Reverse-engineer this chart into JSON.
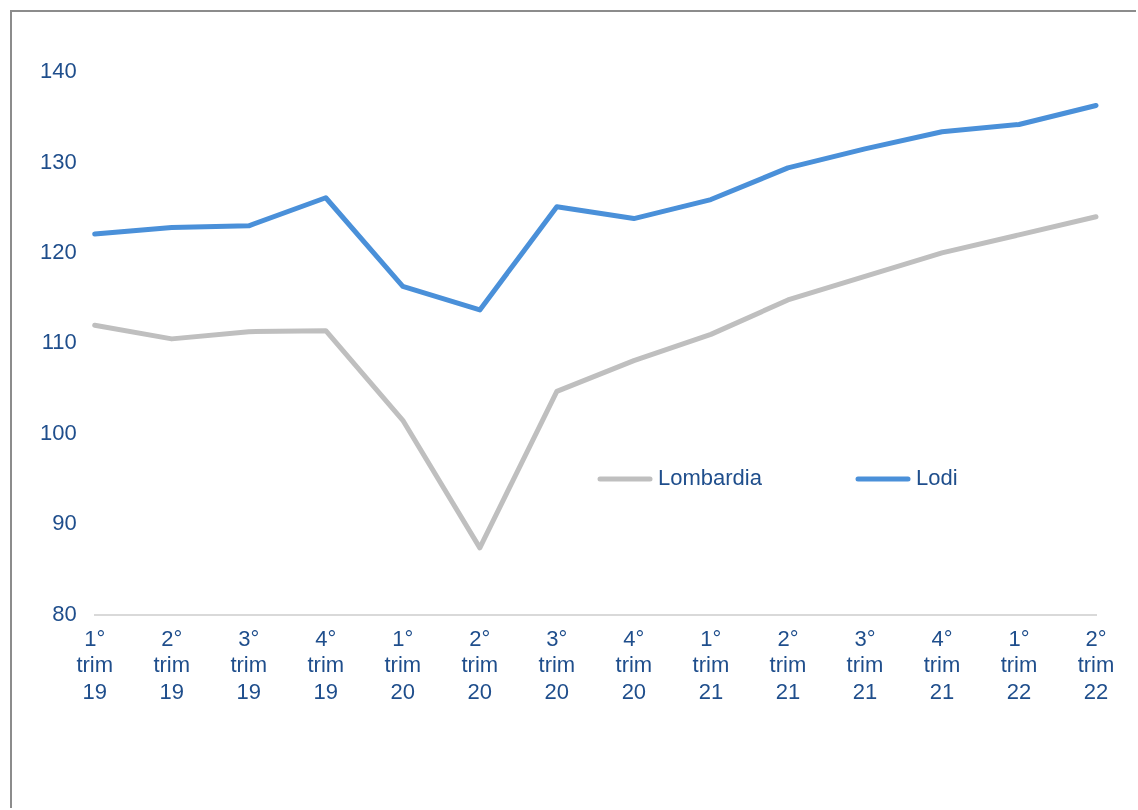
{
  "chart_data": {
    "type": "line",
    "categories": [
      "1° trim 19",
      "2° trim 19",
      "3° trim 19",
      "4° trim 19",
      "1° trim 20",
      "2° trim 20",
      "3° trim 20",
      "4° trim 20",
      "1° trim 21",
      "2° trim 21",
      "3° trim 21",
      "4° trim 21",
      "1° trim 22",
      "2° trim 22"
    ],
    "series": [
      {
        "name": "Lombardia",
        "color": "#bfbfbf",
        "values": [
          112.0,
          110.5,
          111.3,
          111.4,
          101.5,
          87.4,
          104.7,
          108.1,
          111.0,
          114.8,
          117.4,
          120.0,
          122.0,
          124.0
        ]
      },
      {
        "name": "Lodi",
        "color": "#4a90d9",
        "values": [
          122.1,
          122.8,
          123.0,
          126.1,
          116.3,
          113.7,
          125.1,
          123.8,
          125.9,
          129.4,
          131.5,
          133.4,
          134.2,
          136.3
        ]
      }
    ],
    "ylim": [
      80,
      140
    ],
    "yticks": [
      80,
      90,
      100,
      110,
      120,
      130,
      140
    ],
    "grid": false,
    "legend": "right",
    "marker": "none",
    "line_style": "solid"
  }
}
